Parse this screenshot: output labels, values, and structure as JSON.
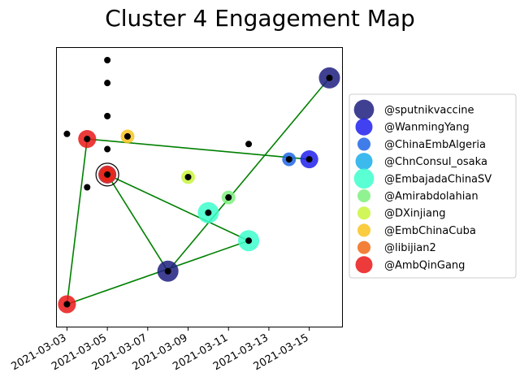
{
  "chart_data": {
    "type": "scatter",
    "title": "Cluster 4 Engagement Map",
    "x_tick_labels": [
      "2021-03-03",
      "2021-03-05",
      "2021-03-07",
      "2021-03-09",
      "2021-03-11",
      "2021-03-13",
      "2021-03-15"
    ],
    "x_ticks": [
      "2021-03-03",
      "2021-03-05",
      "2021-03-07",
      "2021-03-09",
      "2021-03-11",
      "2021-03-13",
      "2021-03-15"
    ],
    "xlim": [
      "2021-03-02 12:00",
      "2021-03-16 15:00"
    ],
    "ylim": [
      0,
      1
    ],
    "y_axis_ticks": "none",
    "grid": false,
    "legend_placement": "right",
    "series": [
      {
        "name": "@sputnikvaccine",
        "color": "#1f1f80",
        "size": 1.0
      },
      {
        "name": "@WanmingYang",
        "color": "#2020ee",
        "size": 0.85
      },
      {
        "name": "@ChinaEmbAlgeria",
        "color": "#1f66e6",
        "size": 0.65
      },
      {
        "name": "@ChnConsul_osaka",
        "color": "#1aadea",
        "size": 0.85
      },
      {
        "name": "@EmbajadaChinaSV",
        "color": "#3dffcc",
        "size": 1.0
      },
      {
        "name": "@Amirabdolahian",
        "color": "#7ef07e",
        "size": 0.65
      },
      {
        "name": "@DXinjiang",
        "color": "#c8f53c",
        "size": 0.65
      },
      {
        "name": "@EmbChinaCuba",
        "color": "#f9c31d",
        "size": 0.65
      },
      {
        "name": "@libijian2",
        "color": "#f06a15",
        "size": 0.65
      },
      {
        "name": "@AmbQinGang",
        "color": "#ea1818",
        "size": 0.85
      }
    ],
    "points": [
      {
        "account": "@sputnikvaccine",
        "x": "2021-03-16",
        "y": 0.93
      },
      {
        "account": "@sputnikvaccine",
        "x": "2021-03-08",
        "y": 0.17
      },
      {
        "account": "@WanmingYang",
        "x": "2021-03-15",
        "y": 0.61
      },
      {
        "account": "@ChinaEmbAlgeria",
        "x": "2021-03-14",
        "y": 0.61
      },
      {
        "account": "@ChnConsul_osaka",
        "x": "2021-03-05",
        "y": 0.55
      },
      {
        "account": "@EmbajadaChinaSV",
        "x": "2021-03-10",
        "y": 0.4
      },
      {
        "account": "@EmbajadaChinaSV",
        "x": "2021-03-12",
        "y": 0.29
      },
      {
        "account": "@Amirabdolahian",
        "x": "2021-03-11",
        "y": 0.46
      },
      {
        "account": "@DXinjiang",
        "x": "2021-03-09",
        "y": 0.54
      },
      {
        "account": "@EmbChinaCuba",
        "x": "2021-03-06",
        "y": 0.7
      },
      {
        "account": "@EmbChinaCuba",
        "x": "2021-03-05",
        "y": 0.55
      },
      {
        "account": "@libijian2",
        "x": "2021-03-05",
        "y": 0.55
      },
      {
        "account": "@AmbQinGang",
        "x": "2021-03-04",
        "y": 0.69
      },
      {
        "account": "@AmbQinGang",
        "x": "2021-03-03",
        "y": 0.04
      },
      {
        "account": "@AmbQinGang",
        "x": "2021-03-05",
        "y": 0.55
      }
    ],
    "black_points": [
      {
        "x": "2021-03-05",
        "y": 1.0
      },
      {
        "x": "2021-03-05",
        "y": 0.91
      },
      {
        "x": "2021-03-05",
        "y": 0.78
      },
      {
        "x": "2021-03-05",
        "y": 0.65
      },
      {
        "x": "2021-03-03",
        "y": 0.71
      },
      {
        "x": "2021-03-04",
        "y": 0.5
      },
      {
        "x": "2021-03-12",
        "y": 0.67
      }
    ],
    "edges": [
      {
        "from": {
          "x": "2021-03-03",
          "y": 0.04
        },
        "to": {
          "x": "2021-03-04",
          "y": 0.69
        }
      },
      {
        "from": {
          "x": "2021-03-04",
          "y": 0.69
        },
        "to": {
          "x": "2021-03-15",
          "y": 0.61
        }
      },
      {
        "from": {
          "x": "2021-03-03",
          "y": 0.04
        },
        "to": {
          "x": "2021-03-12",
          "y": 0.29
        }
      },
      {
        "from": {
          "x": "2021-03-05",
          "y": 0.55
        },
        "to": {
          "x": "2021-03-08",
          "y": 0.17
        }
      },
      {
        "from": {
          "x": "2021-03-05",
          "y": 0.55
        },
        "to": {
          "x": "2021-03-12",
          "y": 0.29
        }
      },
      {
        "from": {
          "x": "2021-03-08",
          "y": 0.17
        },
        "to": {
          "x": "2021-03-16",
          "y": 0.93
        }
      }
    ],
    "edge_color": "#008000"
  }
}
